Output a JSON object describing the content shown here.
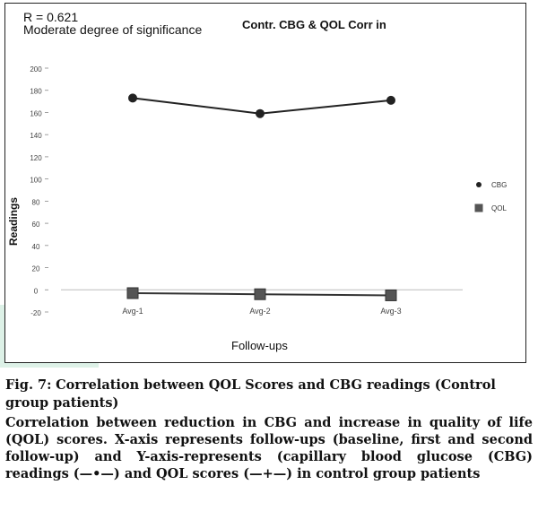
{
  "figure": {
    "stat_line1": "R = 0.621",
    "stat_line2": "Moderate degree of significance",
    "caption_label": "Fig. 7:",
    "caption_title": "Correlation between QOL Scores and CBG readings (Control group patients)",
    "caption_body": "Correlation between reduction in CBG and increase in quality of life (QOL) scores. X-axis represents follow-ups (baseline, first and second follow-up) and Y-axis-represents (capillary blood glucose (CBG) readings (—•—) and QOL scores (—+—) in control group patients"
  },
  "chart_data": {
    "type": "line",
    "title": "Contr. CBG & QOL Corr in",
    "xlabel": "Follow-ups",
    "ylabel": "Readings",
    "categories": [
      "Avg-1",
      "Avg-2",
      "Avg-3"
    ],
    "ylim": [
      -20,
      200
    ],
    "yticks": [
      -20,
      0,
      20,
      40,
      60,
      80,
      100,
      120,
      140,
      160,
      180,
      200
    ],
    "grid": false,
    "legend_position": "right",
    "series": [
      {
        "name": "CBG",
        "values": [
          173,
          159,
          171
        ],
        "marker": "circle",
        "color": "#222222"
      },
      {
        "name": "QOL",
        "values": [
          -3,
          -4,
          -5
        ],
        "marker": "square",
        "color": "#333333"
      }
    ]
  }
}
